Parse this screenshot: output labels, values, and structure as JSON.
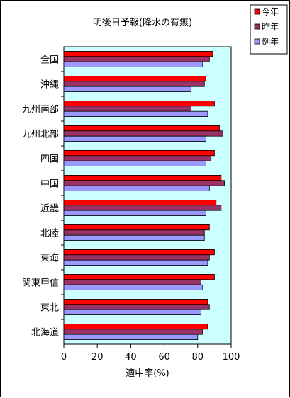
{
  "chart_data": {
    "type": "bar",
    "orientation": "horizontal",
    "title": "明後日予報(降水の有無)",
    "xlabel": "適中率(%)",
    "ylabel": "",
    "xlim": [
      0,
      100
    ],
    "xticks": [
      0,
      20,
      40,
      60,
      80,
      100
    ],
    "grid": false,
    "legend_position": "top-right",
    "plot_background": "#ccffff",
    "categories": [
      "全国",
      "沖縄",
      "九州南部",
      "九州北部",
      "四国",
      "中国",
      "近畿",
      "北陸",
      "東海",
      "関東甲信",
      "東北",
      "北海道"
    ],
    "series": [
      {
        "name": "今年",
        "color": "#ff0000",
        "values": [
          89,
          85,
          90,
          93,
          90,
          94,
          91,
          87,
          90,
          90,
          86,
          86
        ]
      },
      {
        "name": "昨年",
        "color": "#993366",
        "values": [
          87,
          84,
          76,
          95,
          88,
          96,
          94,
          84,
          87,
          82,
          87,
          83
        ]
      },
      {
        "name": "例年",
        "color": "#9999ff",
        "values": [
          83,
          76,
          86,
          85,
          85,
          87,
          85,
          84,
          86,
          83,
          82,
          80
        ]
      }
    ]
  }
}
